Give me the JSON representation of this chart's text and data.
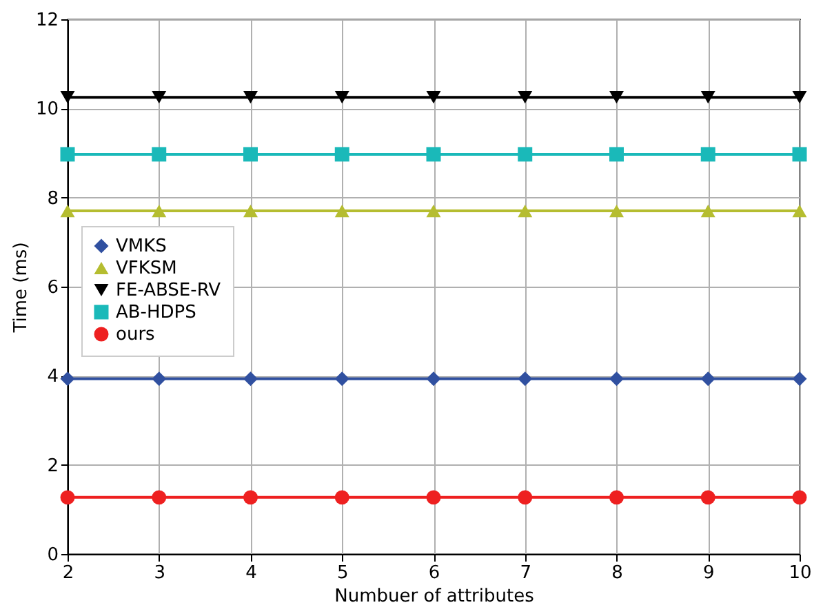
{
  "chart_data": {
    "type": "line",
    "xlabel": "Numbuer of attributes",
    "ylabel": "Time (ms)",
    "x": [
      2,
      3,
      4,
      5,
      6,
      7,
      8,
      9,
      10
    ],
    "xlim": [
      2,
      10
    ],
    "xticks": [
      2,
      3,
      4,
      5,
      6,
      7,
      8,
      9,
      10
    ],
    "ylim": [
      0,
      12
    ],
    "yticks": [
      0,
      2,
      4,
      6,
      8,
      10,
      12
    ],
    "grid": true,
    "legend": "bottom left",
    "series": [
      {
        "name": "VMKS",
        "color": "#3050a0",
        "marker": "diamond",
        "values": [
          3.93,
          3.93,
          3.93,
          3.93,
          3.93,
          3.93,
          3.93,
          3.93,
          3.93
        ]
      },
      {
        "name": "VFKSM",
        "color": "#b5bd30",
        "marker": "triangle",
        "values": [
          7.7,
          7.7,
          7.7,
          7.7,
          7.7,
          7.7,
          7.7,
          7.7,
          7.7
        ]
      },
      {
        "name": "FE-ABSE-RV",
        "color": "#000000",
        "marker": "triangle-down",
        "values": [
          10.25,
          10.25,
          10.25,
          10.25,
          10.25,
          10.25,
          10.25,
          10.25,
          10.25
        ]
      },
      {
        "name": "AB-HDPS",
        "color": "#1ab9b9",
        "marker": "square",
        "values": [
          8.97,
          8.97,
          8.97,
          8.97,
          8.97,
          8.97,
          8.97,
          8.97,
          8.97
        ]
      },
      {
        "name": "ours",
        "color": "#ee2020",
        "marker": "circle",
        "values": [
          1.27,
          1.27,
          1.27,
          1.27,
          1.27,
          1.27,
          1.27,
          1.27,
          1.27
        ]
      }
    ]
  }
}
